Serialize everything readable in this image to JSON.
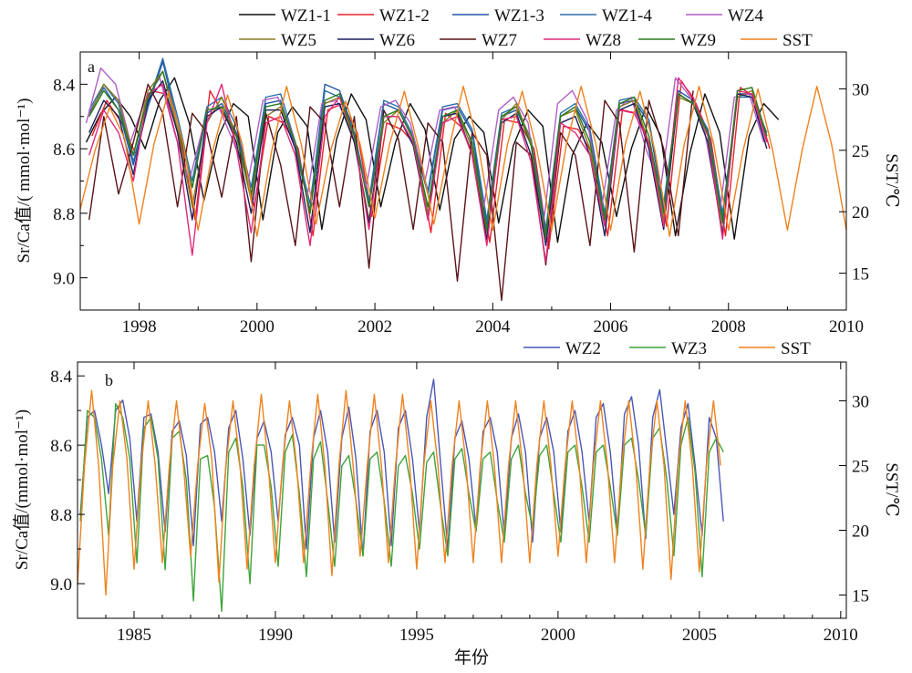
{
  "figure": {
    "xlabel": "年份",
    "colors": {
      "WZ1-1": "#111111",
      "WZ1-2": "#e8222a",
      "WZ1-3": "#2257a6",
      "WZ1-4": "#2a6fa8",
      "WZ4": "#b05fc4",
      "WZ5": "#8a7a20",
      "WZ6": "#1c1f5c",
      "WZ7": "#5a1418",
      "WZ8": "#e0287a",
      "WZ9": "#2a7a1e",
      "SST": "#f0821e",
      "WZ2": "#4a57b5",
      "WZ3": "#3fa33a"
    }
  },
  "chart_data": [
    {
      "type": "line",
      "panel_label": "a",
      "ylabel": "Sr/Ca值/( mmol·mol⁻¹)",
      "y2label": "SST/℃",
      "xlim": [
        1997.0,
        2010.0
      ],
      "ylim": [
        9.1,
        8.3
      ],
      "y2lim": [
        12.0,
        33.0
      ],
      "xticks": [
        1998,
        2000,
        2002,
        2004,
        2006,
        2008,
        2010
      ],
      "yticks": [
        8.4,
        8.6,
        8.8,
        9.0
      ],
      "y2ticks": [
        15,
        20,
        25,
        30
      ],
      "grid": false,
      "legend": "top, two rows above panel",
      "legend_rows": [
        [
          "WZ1-1",
          "WZ1-2",
          "WZ1-3",
          "WZ1-4",
          "WZ4"
        ],
        [
          "WZ5",
          "WZ6",
          "WZ7",
          "WZ8",
          "WZ9",
          "SST"
        ]
      ],
      "x_start": 1997.0,
      "x_step": 0.25,
      "series_note": "values are quarterly (Jan, Apr, Jul, Oct)",
      "series": [
        {
          "name": "WZ1-1",
          "axis": "left",
          "x_start": 1997.1,
          "values": [
            8.58,
            8.49,
            8.44,
            8.5,
            8.6,
            8.45,
            8.38,
            8.52,
            8.76,
            8.56,
            8.46,
            8.5,
            8.82,
            8.55,
            8.47,
            8.53,
            8.85,
            8.57,
            8.43,
            8.51,
            8.78,
            8.58,
            8.46,
            8.54,
            8.79,
            8.57,
            8.5,
            8.55,
            8.83,
            8.59,
            8.48,
            8.53,
            8.89,
            8.62,
            8.52,
            8.58,
            8.81,
            8.6,
            8.47,
            8.56,
            8.87,
            8.61,
            8.43,
            8.55,
            8.88,
            8.56,
            8.46,
            8.51
          ]
        },
        {
          "name": "WZ1-2",
          "axis": "left",
          "x_start": 1997.2,
          "values": [
            8.56,
            8.45,
            8.52,
            8.62,
            8.42,
            8.43,
            8.57,
            8.82,
            8.42,
            8.5,
            8.58,
            8.78,
            8.5,
            8.52,
            8.6,
            8.87,
            8.48,
            8.46,
            8.55,
            8.81,
            8.52,
            8.54,
            8.59,
            8.86,
            8.49,
            8.53,
            8.63,
            8.89,
            8.51,
            8.52,
            8.6,
            8.91,
            8.53,
            8.54,
            8.62,
            8.87,
            8.48,
            8.49,
            8.61,
            8.84,
            8.39,
            8.46,
            8.57,
            8.87,
            8.41,
            8.44,
            8.6
          ]
        },
        {
          "name": "WZ1-3",
          "axis": "left",
          "x_start": 1997.15,
          "values": [
            8.49,
            8.41,
            8.48,
            8.65,
            8.47,
            8.33,
            8.52,
            8.72,
            8.49,
            8.46,
            8.55,
            8.74,
            8.46,
            8.45,
            8.6,
            8.79,
            8.4,
            8.42,
            8.55,
            8.77,
            8.46,
            8.48,
            8.57,
            8.74,
            8.48,
            8.47,
            8.55,
            8.84,
            8.5,
            8.48,
            8.58,
            8.87,
            8.5,
            8.47,
            8.55,
            8.82,
            8.46,
            8.45,
            8.52,
            8.79,
            8.42,
            8.45,
            8.55,
            8.82,
            8.43,
            8.43,
            8.56
          ]
        },
        {
          "name": "WZ1-4",
          "axis": "left",
          "x_start": 1997.15,
          "values": [
            8.48,
            8.4,
            8.46,
            8.64,
            8.46,
            8.32,
            8.5,
            8.7,
            8.47,
            8.44,
            8.53,
            8.72,
            8.44,
            8.43,
            8.58,
            8.77,
            8.42,
            8.44,
            8.55,
            8.76,
            8.45,
            8.47,
            8.56,
            8.73,
            8.47,
            8.46,
            8.54,
            8.82,
            8.49,
            8.47,
            8.57,
            8.85,
            8.49,
            8.46,
            8.54,
            8.8,
            8.45,
            8.44,
            8.51,
            8.77,
            8.43,
            8.46,
            8.54,
            8.8,
            8.44,
            8.44,
            8.55
          ]
        },
        {
          "name": "WZ4",
          "axis": "left",
          "x_start": 1997.1,
          "values": [
            8.52,
            8.35,
            8.4,
            8.58,
            8.45,
            8.38,
            8.55,
            8.7,
            8.52,
            8.47,
            8.58,
            8.7,
            8.45,
            8.44,
            8.55,
            8.75,
            8.46,
            8.45,
            8.54,
            8.72,
            8.47,
            8.45,
            8.52,
            8.7,
            8.48,
            8.47,
            8.56,
            8.78,
            8.48,
            8.44,
            8.52,
            8.85,
            8.46,
            8.42,
            8.51,
            8.78,
            8.48,
            8.44,
            8.6,
            8.72,
            8.38,
            8.44,
            8.55,
            8.8,
            8.44,
            8.43,
            8.58
          ]
        },
        {
          "name": "WZ5",
          "axis": "left",
          "x_start": 1997.15,
          "values": [
            8.5,
            8.4,
            8.45,
            8.62,
            8.42,
            8.36,
            8.54,
            8.78,
            8.52,
            8.44,
            8.56,
            8.76,
            8.5,
            8.47,
            8.58,
            8.8,
            8.46,
            8.44,
            8.58,
            8.82,
            8.52,
            8.48,
            8.57,
            8.8,
            8.52,
            8.48,
            8.6,
            8.86,
            8.51,
            8.46,
            8.58,
            8.88,
            8.5,
            8.48,
            8.6,
            8.84,
            8.47,
            8.45,
            8.58,
            8.82,
            8.44,
            8.46,
            8.56,
            8.86,
            8.44,
            8.42,
            8.58
          ]
        },
        {
          "name": "WZ6",
          "axis": "left",
          "x_start": 1997.15,
          "values": [
            8.55,
            8.45,
            8.5,
            8.68,
            8.45,
            8.39,
            8.55,
            8.82,
            8.5,
            8.47,
            8.58,
            8.8,
            8.48,
            8.48,
            8.6,
            8.86,
            8.47,
            8.46,
            8.58,
            8.83,
            8.5,
            8.5,
            8.59,
            8.82,
            8.5,
            8.49,
            8.62,
            8.88,
            8.52,
            8.49,
            8.62,
            8.9,
            8.52,
            8.5,
            8.62,
            8.87,
            8.48,
            8.46,
            8.6,
            8.85,
            8.43,
            8.46,
            8.58,
            8.87,
            8.43,
            8.44,
            8.6
          ]
        },
        {
          "name": "WZ7",
          "axis": "left",
          "x_start": 1997.15,
          "values": [
            8.82,
            8.5,
            8.74,
            8.58,
            8.4,
            8.49,
            8.78,
            8.49,
            8.55,
            8.75,
            8.5,
            8.95,
            8.49,
            8.65,
            8.9,
            8.47,
            8.52,
            8.78,
            8.5,
            8.97,
            8.48,
            8.57,
            8.85,
            8.52,
            8.58,
            9.01,
            8.55,
            8.62,
            9.07,
            8.58,
            8.62,
            8.96,
            8.55,
            8.62,
            8.9,
            8.45,
            8.52,
            8.92,
            8.45,
            8.6,
            8.87,
            8.42
          ]
        },
        {
          "name": "WZ8",
          "axis": "left",
          "x_start": 1997.15,
          "values": [
            8.62,
            8.48,
            8.55,
            8.7,
            8.43,
            8.4,
            8.58,
            8.93,
            8.52,
            8.4,
            8.6,
            8.86,
            8.52,
            8.5,
            8.62,
            8.9,
            8.5,
            8.44,
            8.56,
            8.85,
            8.5,
            8.5,
            8.58,
            8.82,
            8.52,
            8.5,
            8.62,
            8.9,
            8.51,
            8.5,
            8.64,
            8.95,
            8.52,
            8.55,
            8.62,
            8.84,
            8.48,
            8.49,
            8.58,
            8.84,
            8.38,
            8.44,
            8.56,
            8.88,
            8.42,
            8.43,
            8.58
          ]
        },
        {
          "name": "WZ9",
          "axis": "left",
          "x_start": 1997.15,
          "values": [
            8.5,
            8.42,
            8.48,
            8.62,
            8.44,
            8.36,
            8.52,
            8.72,
            8.48,
            8.47,
            8.56,
            8.74,
            8.47,
            8.46,
            8.58,
            8.8,
            8.45,
            8.43,
            8.56,
            8.78,
            8.5,
            8.48,
            8.57,
            8.78,
            8.5,
            8.48,
            8.58,
            8.85,
            8.5,
            8.47,
            8.59,
            8.87,
            8.5,
            8.47,
            8.58,
            8.82,
            8.46,
            8.44,
            8.56,
            8.8,
            8.43,
            8.46,
            8.55,
            8.83,
            8.42,
            8.41,
            8.56
          ]
        },
        {
          "name": "SST",
          "axis": "right",
          "x_start": 1997.0,
          "values": [
            20.2,
            25.0,
            28.5,
            26.0,
            19.0,
            25.5,
            29.8,
            25.5,
            18.5,
            25.0,
            29.5,
            25.5,
            18.0,
            25.0,
            30.2,
            25.5,
            19.0,
            25.0,
            29.0,
            25.5,
            19.5,
            25.5,
            29.8,
            25.0,
            19.0,
            25.0,
            30.2,
            25.5,
            18.5,
            25.5,
            29.8,
            25.0,
            18.5,
            25.5,
            30.2,
            25.5,
            18.5,
            25.5,
            29.8,
            25.0,
            18.0,
            25.5,
            30.2,
            25.5,
            18.5,
            25.0,
            30.0,
            25.0,
            18.5,
            25.0,
            30.2,
            25.5,
            18.5
          ]
        }
      ]
    },
    {
      "type": "line",
      "panel_label": "b",
      "ylabel": "Sr/Ca值/(mmol·mol⁻¹)",
      "y2label": "SST/℃",
      "xlim": [
        1983.0,
        2010.2
      ],
      "ylim": [
        9.1,
        8.36
      ],
      "y2lim": [
        13.2,
        33.0
      ],
      "xticks": [
        1985,
        1990,
        1995,
        2000,
        2005,
        2010
      ],
      "yticks": [
        8.4,
        8.6,
        8.8,
        9.0
      ],
      "y2ticks": [
        15,
        20,
        25,
        30
      ],
      "grid": false,
      "legend": "top-right, one row above panel",
      "legend_rows": [
        [
          "WZ2",
          "WZ3",
          "SST"
        ]
      ],
      "series_note": "period 1 year; values are per season (Jan, Apr, Jul, Oct)",
      "series": [
        {
          "name": "WZ2",
          "axis": "left",
          "x_start": 1983.1,
          "values": [
            8.8,
            8.52,
            8.5,
            8.6,
            8.74,
            8.5,
            8.47,
            8.58,
            8.82,
            8.52,
            8.51,
            8.62,
            8.85,
            8.56,
            8.53,
            8.63,
            8.89,
            8.54,
            8.52,
            8.62,
            8.82,
            8.55,
            8.5,
            8.64,
            8.86,
            8.58,
            8.53,
            8.62,
            8.82,
            8.57,
            8.52,
            8.6,
            8.9,
            8.58,
            8.5,
            8.62,
            8.88,
            8.58,
            8.49,
            8.64,
            8.92,
            8.56,
            8.5,
            8.62,
            8.89,
            8.55,
            8.5,
            8.64,
            8.85,
            8.52,
            8.41,
            8.66,
            8.9,
            8.58,
            8.53,
            8.64,
            8.84,
            8.56,
            8.52,
            8.62,
            8.86,
            8.58,
            8.51,
            8.62,
            8.88,
            8.58,
            8.52,
            8.62,
            8.85,
            8.56,
            8.5,
            8.62,
            8.82,
            8.52,
            8.48,
            8.62,
            8.85,
            8.51,
            8.46,
            8.6,
            8.87,
            8.52,
            8.44,
            8.62,
            8.8,
            8.55,
            8.48,
            8.66,
            8.86,
            8.52,
            8.58,
            8.82
          ]
        },
        {
          "name": "WZ3",
          "axis": "left",
          "x_start": 1983.1,
          "values": [
            8.82,
            8.5,
            8.52,
            8.64,
            8.86,
            8.48,
            8.52,
            8.64,
            8.94,
            8.55,
            8.52,
            8.64,
            8.96,
            8.58,
            8.56,
            8.7,
            9.05,
            8.64,
            8.63,
            8.78,
            9.08,
            8.62,
            8.58,
            8.72,
            9.0,
            8.6,
            8.6,
            8.72,
            8.95,
            8.62,
            8.57,
            8.74,
            8.98,
            8.64,
            8.59,
            8.76,
            8.95,
            8.66,
            8.63,
            8.76,
            8.92,
            8.64,
            8.62,
            8.76,
            8.95,
            8.66,
            8.63,
            8.74,
            8.9,
            8.65,
            8.62,
            8.78,
            8.92,
            8.64,
            8.61,
            8.74,
            8.85,
            8.64,
            8.62,
            8.76,
            8.88,
            8.64,
            8.6,
            8.74,
            8.84,
            8.63,
            8.6,
            8.74,
            8.88,
            8.62,
            8.6,
            8.72,
            8.88,
            8.62,
            8.6,
            8.72,
            8.86,
            8.6,
            8.58,
            8.7,
            8.86,
            8.58,
            8.55,
            8.7,
            8.92,
            8.6,
            8.52,
            8.68,
            8.98,
            8.62,
            8.58,
            8.62
          ]
        },
        {
          "name": "SST",
          "axis": "right",
          "x_start": 1983.0,
          "values": [
            15.8,
            25.0,
            30.8,
            25.0,
            15.0,
            25.0,
            30.0,
            25.5,
            17.0,
            25.0,
            30.0,
            25.0,
            17.5,
            25.0,
            30.0,
            25.0,
            18.0,
            25.0,
            29.8,
            25.5,
            16.0,
            25.0,
            30.0,
            25.0,
            17.0,
            25.0,
            30.5,
            25.0,
            17.5,
            25.0,
            30.0,
            25.0,
            17.5,
            25.0,
            30.5,
            25.0,
            16.5,
            25.0,
            30.8,
            25.0,
            18.0,
            25.0,
            30.5,
            25.0,
            17.5,
            25.0,
            30.5,
            25.0,
            17.0,
            25.0,
            30.0,
            25.0,
            17.5,
            25.0,
            30.0,
            25.0,
            17.5,
            25.0,
            30.0,
            25.0,
            17.5,
            25.0,
            30.0,
            25.0,
            17.5,
            25.0,
            30.0,
            25.0,
            18.0,
            25.0,
            30.0,
            25.0,
            17.5,
            25.0,
            30.0,
            25.0,
            17.5,
            25.0,
            30.0,
            25.0,
            17.0,
            25.0,
            30.0,
            25.0,
            16.2,
            25.0,
            30.0,
            25.0,
            16.8,
            25.0,
            30.0,
            25.0
          ]
        }
      ]
    }
  ]
}
